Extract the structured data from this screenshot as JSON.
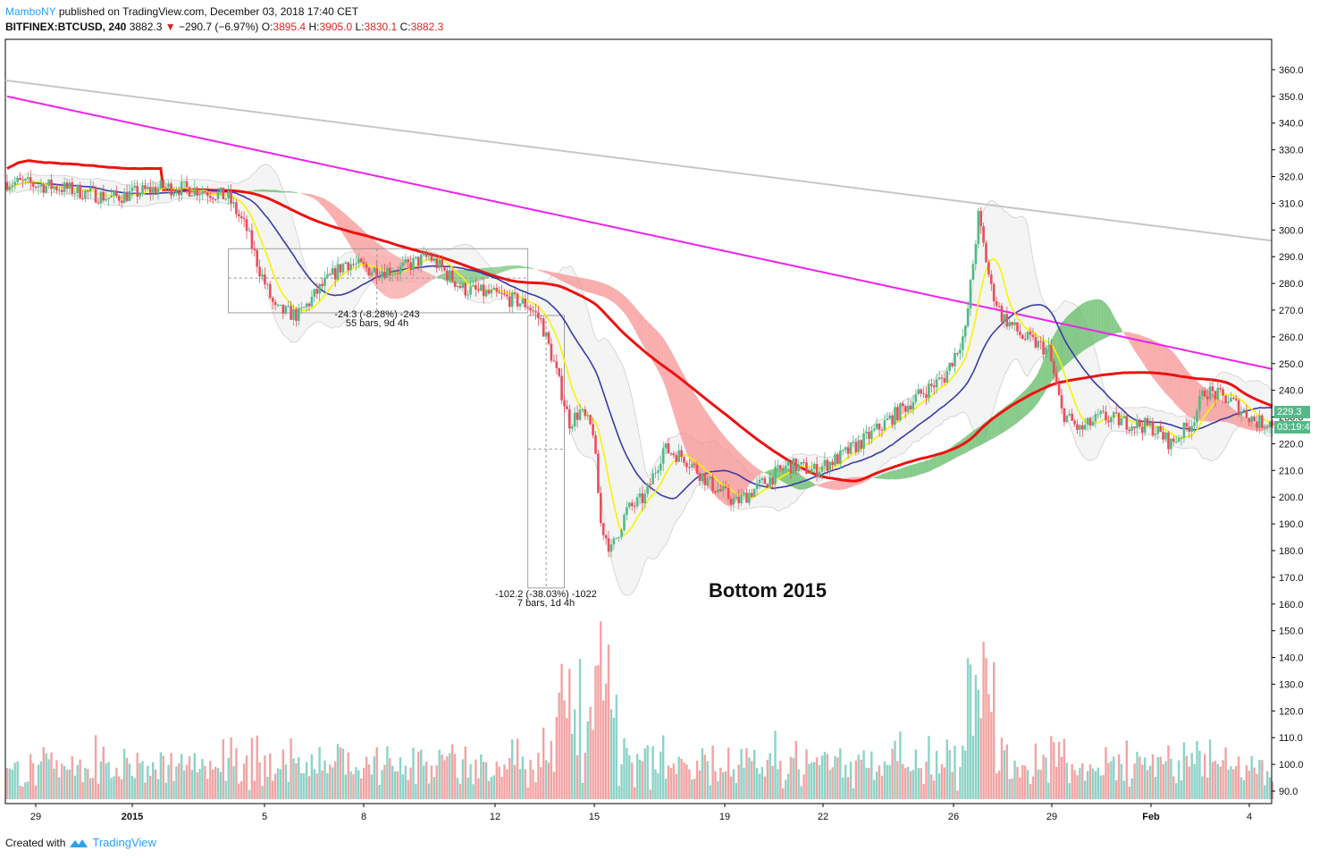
{
  "header": {
    "author": "MamboNY",
    "published_text": "published on TradingView.com, December 03, 2018 17:40 CET",
    "symbol": "BITFINEX:BTCUSD, 240",
    "last": "3882.3",
    "change_arrow": "▼",
    "change": "−290.7 (−6.97%)",
    "o_label": "O:",
    "o_value": "3895.4",
    "h_label": "H:",
    "h_value": "3905.0",
    "l_label": "L:",
    "l_value": "3830.1",
    "c_label": "C:",
    "c_value": "3882.3"
  },
  "footer": {
    "created_with": "Created with",
    "brand": "TradingView"
  },
  "price_tags": {
    "last_price": "229.3",
    "countdown": "03:19:44"
  },
  "colors": {
    "up": "#53b987",
    "down": "#eb4d5c",
    "vol_up": "#8dd3c7",
    "vol_down": "#f4a3a3",
    "ma_yellow": "#f5f500",
    "ma_blue": "#3b3ba8",
    "ma_red": "#ee1111",
    "ma_magenta": "#ee22ee",
    "trendline": "#c7c7c7",
    "cloud_green": "#5fb963",
    "cloud_red": "#f88a8a",
    "bb_fill": "#e6e6e6",
    "author": "#2aa1f3"
  },
  "chart_data": {
    "type": "candlestick",
    "y_axis": {
      "ticks": [
        "360.0",
        "350.0",
        "340.0",
        "330.0",
        "320.0",
        "310.0",
        "300.0",
        "290.0",
        "280.0",
        "270.0",
        "260.0",
        "250.0",
        "240.0",
        "230.0",
        "220.0",
        "210.0",
        "200.0",
        "190.0",
        "180.0",
        "170.0",
        "160.0",
        "150.0",
        "140.0",
        "130.0",
        "120.0",
        "110.0",
        "100.0",
        "90.0"
      ],
      "range": [
        84,
        364
      ]
    },
    "x_axis": {
      "ticks": [
        "29",
        "2015",
        "5",
        "8",
        "12",
        "15",
        "19",
        "22",
        "26",
        "29",
        "Feb",
        "4"
      ]
    },
    "annotations": {
      "text_large": "Bottom 2015",
      "measure1_line1": "-24.3 (-8.28%) -243",
      "measure1_line2": "55 bars, 9d 4h",
      "measure2_line1": "-102.2 (-38.03%) -1022",
      "measure2_line2": "7 bars, 1d 4h"
    },
    "price_path_keypoints": [
      [
        0,
        318
      ],
      [
        20,
        316
      ],
      [
        40,
        312
      ],
      [
        60,
        316
      ],
      [
        75,
        315
      ],
      [
        85,
        312
      ],
      [
        92,
        300
      ],
      [
        97,
        285
      ],
      [
        103,
        270
      ],
      [
        112,
        268
      ],
      [
        120,
        278
      ],
      [
        130,
        288
      ],
      [
        140,
        285
      ],
      [
        150,
        285
      ],
      [
        162,
        290
      ],
      [
        175,
        278
      ],
      [
        190,
        275
      ],
      [
        200,
        272
      ],
      [
        205,
        266
      ],
      [
        210,
        250
      ],
      [
        216,
        228
      ],
      [
        220,
        232
      ],
      [
        225,
        225
      ],
      [
        228,
        190
      ],
      [
        232,
        180
      ],
      [
        238,
        195
      ],
      [
        245,
        200
      ],
      [
        252,
        218
      ],
      [
        260,
        215
      ],
      [
        270,
        205
      ],
      [
        280,
        198
      ],
      [
        290,
        205
      ],
      [
        300,
        212
      ],
      [
        310,
        210
      ],
      [
        320,
        215
      ],
      [
        330,
        222
      ],
      [
        340,
        230
      ],
      [
        350,
        238
      ],
      [
        360,
        245
      ],
      [
        368,
        262
      ],
      [
        373,
        305
      ],
      [
        378,
        278
      ],
      [
        382,
        268
      ],
      [
        390,
        260
      ],
      [
        400,
        255
      ],
      [
        405,
        232
      ],
      [
        412,
        225
      ],
      [
        420,
        230
      ],
      [
        430,
        228
      ],
      [
        440,
        226
      ],
      [
        447,
        220
      ],
      [
        455,
        228
      ],
      [
        460,
        240
      ],
      [
        470,
        236
      ],
      [
        480,
        228
      ],
      [
        486,
        228
      ]
    ],
    "volume_description": "volume histogram bars at bottom, scaled to price axis 84–155",
    "indicators": [
      "MA fast (yellow)",
      "MA medium (blue)",
      "MA slow (red)",
      "MA long (magenta)",
      "Ichimoku cloud",
      "Bollinger bands",
      "Trendline"
    ]
  }
}
